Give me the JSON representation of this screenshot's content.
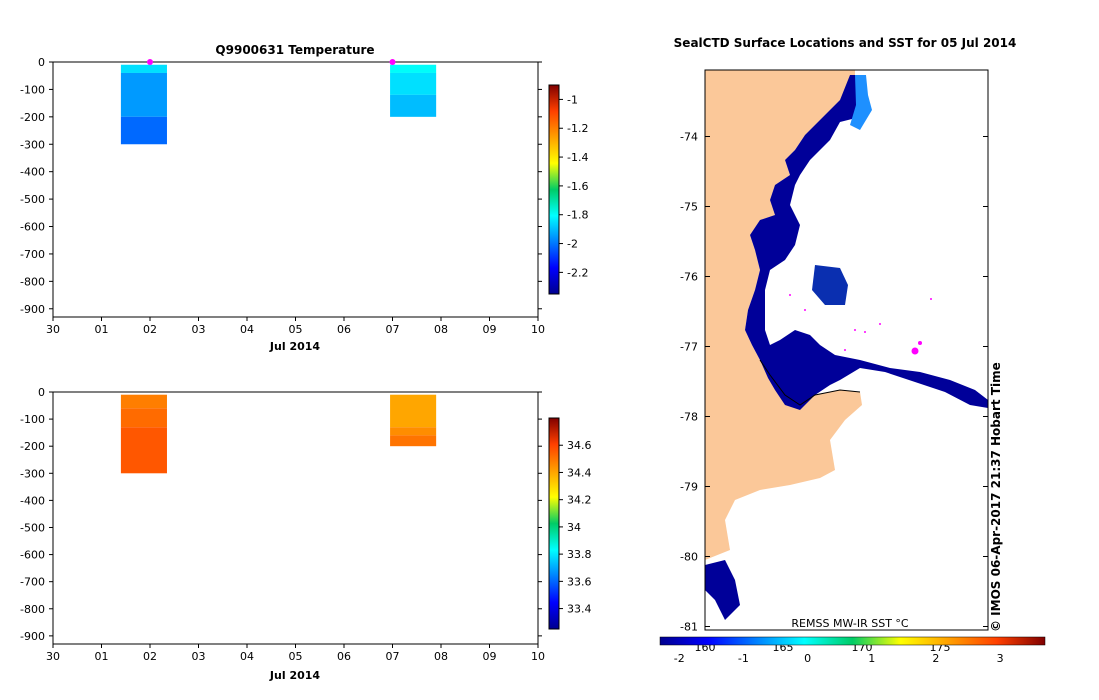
{
  "chart_data": [
    {
      "type": "heatmap",
      "title": "Q9900631  Temperature",
      "xlabel": "Jul 2014",
      "x_ticks": [
        "30",
        "01",
        "02",
        "03",
        "04",
        "05",
        "06",
        "07",
        "08",
        "09",
        "10"
      ],
      "y_ticks": [
        0,
        -100,
        -200,
        -300,
        -400,
        -500,
        -600,
        -700,
        -800,
        -900
      ],
      "ylim": [
        -930,
        0
      ],
      "colorbar_ticks": [
        -1,
        -1.2,
        -1.4,
        -1.6,
        -1.8,
        -2,
        -2.2
      ],
      "colorbar_range": [
        -2.35,
        -0.9
      ],
      "profiles": [
        {
          "date_index_start": 1.4,
          "date_index_end": 2.35,
          "depth_min": -10,
          "depth_max": -300,
          "layers": [
            {
              "from": -10,
              "to": -40,
              "value": -1.85
            },
            {
              "from": -40,
              "to": -200,
              "value": -1.95
            },
            {
              "from": -200,
              "to": -300,
              "value": -2.02
            }
          ]
        },
        {
          "date_index_start": 6.95,
          "date_index_end": 7.9,
          "depth_min": -10,
          "depth_max": -200,
          "layers": [
            {
              "from": -10,
              "to": -40,
              "value": -1.8
            },
            {
              "from": -40,
              "to": -120,
              "value": -1.85
            },
            {
              "from": -120,
              "to": -200,
              "value": -1.9
            }
          ]
        }
      ],
      "markers": [
        {
          "date_index": 2.0,
          "depth": 0
        },
        {
          "date_index": 7.0,
          "depth": 0
        }
      ]
    },
    {
      "type": "heatmap",
      "title": "",
      "xlabel": "Jul 2014",
      "x_ticks": [
        "30",
        "01",
        "02",
        "03",
        "04",
        "05",
        "06",
        "07",
        "08",
        "09",
        "10"
      ],
      "y_ticks": [
        0,
        -100,
        -200,
        -300,
        -400,
        -500,
        -600,
        -700,
        -800,
        -900
      ],
      "ylim": [
        -930,
        0
      ],
      "colorbar_ticks": [
        34.6,
        34.4,
        34.2,
        34,
        33.8,
        33.6,
        33.4
      ],
      "colorbar_range": [
        33.25,
        34.8
      ],
      "profiles": [
        {
          "date_index_start": 1.4,
          "date_index_end": 2.35,
          "depth_min": -10,
          "depth_max": -300,
          "layers": [
            {
              "from": -10,
              "to": -60,
              "value": 34.48
            },
            {
              "from": -60,
              "to": -130,
              "value": 34.52
            },
            {
              "from": -130,
              "to": -300,
              "value": 34.56
            }
          ]
        },
        {
          "date_index_start": 6.95,
          "date_index_end": 7.9,
          "depth_min": -10,
          "depth_max": -200,
          "layers": [
            {
              "from": -10,
              "to": -130,
              "value": 34.4
            },
            {
              "from": -130,
              "to": -160,
              "value": 34.45
            },
            {
              "from": -160,
              "to": -200,
              "value": 34.5
            }
          ]
        }
      ]
    },
    {
      "type": "map",
      "title": "SealCTD Surface Locations and SST for 05 Jul 2014",
      "lat_ticks": [
        "-74",
        "-75",
        "-76",
        "-77",
        "-78",
        "-79",
        "-80",
        "-81"
      ],
      "lat_range": [
        -81.05,
        -73.05
      ],
      "lon_ticks": [
        "160",
        "165",
        "170",
        "175"
      ],
      "sst_label": "REMSS MW-IR SST °C",
      "sst_colorbar_ticks": [
        "-2",
        "-1",
        "0",
        "1",
        "2",
        "3"
      ],
      "sst_range": [
        -2.3,
        3.7
      ],
      "copyright": "© IMOS 06-Apr-2017 21:37 Hobart Time",
      "land_color": "#fbc899",
      "sea_ice_edge_color": "#000099"
    }
  ]
}
